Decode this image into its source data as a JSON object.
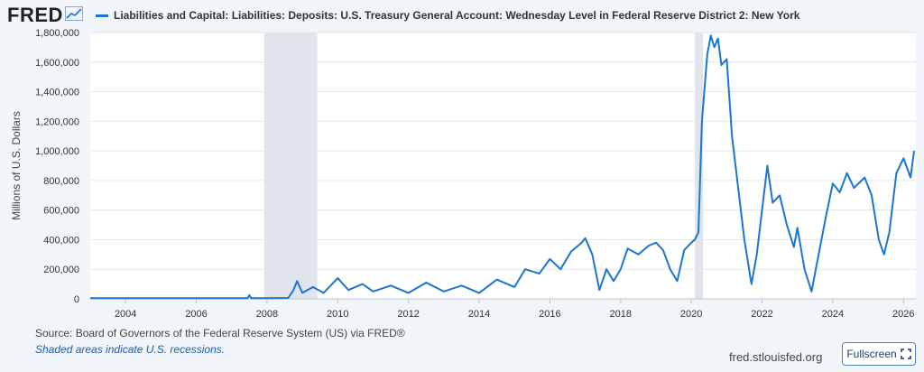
{
  "header": {
    "logo": "FRED",
    "logo_icon": "line-chart-icon",
    "series_title": "Liabilities and Capital: Liabilities: Deposits: U.S. Treasury General Account: Wednesday Level in Federal Reserve District 2: New York",
    "series_color": "#1a76d2"
  },
  "chart_data": {
    "type": "line",
    "ylabel": "Millions of U.S. Dollars",
    "xlabel": "",
    "ylim": [
      0,
      1800000
    ],
    "xlim": [
      2003.0,
      2026.35
    ],
    "y_ticks": [
      0,
      200000,
      400000,
      600000,
      800000,
      1000000,
      1200000,
      1400000,
      1600000,
      1800000
    ],
    "y_tick_labels": [
      "0",
      "200,000",
      "400,000",
      "600,000",
      "800,000",
      "1,000,000",
      "1,200,000",
      "1,400,000",
      "1,600,000",
      "1,800,000"
    ],
    "x_ticks": [
      2004,
      2006,
      2008,
      2010,
      2012,
      2014,
      2016,
      2018,
      2020,
      2022,
      2024,
      2026
    ],
    "x_tick_labels": [
      "2004",
      "2006",
      "2008",
      "2010",
      "2012",
      "2014",
      "2016",
      "2018",
      "2020",
      "2022",
      "2024",
      "2026"
    ],
    "grid": "horizontal",
    "recessions": [
      [
        2007.92,
        2009.42
      ],
      [
        2020.1,
        2020.33
      ]
    ],
    "series": [
      {
        "name": "Liabilities and Capital: Liabilities: Deposits: U.S. Treasury General Account: Wednesday Level in Federal Reserve District 2: New York",
        "color": "#1a76d2",
        "points": [
          [
            2003.0,
            5000
          ],
          [
            2004.0,
            4000
          ],
          [
            2005.0,
            5000
          ],
          [
            2006.0,
            4000
          ],
          [
            2007.0,
            5000
          ],
          [
            2007.45,
            5000
          ],
          [
            2007.5,
            25000
          ],
          [
            2007.55,
            5000
          ],
          [
            2008.0,
            5000
          ],
          [
            2008.6,
            6000
          ],
          [
            2008.75,
            60000
          ],
          [
            2008.85,
            120000
          ],
          [
            2009.0,
            40000
          ],
          [
            2009.3,
            80000
          ],
          [
            2009.6,
            40000
          ],
          [
            2010.0,
            140000
          ],
          [
            2010.3,
            60000
          ],
          [
            2010.7,
            100000
          ],
          [
            2011.0,
            50000
          ],
          [
            2011.5,
            90000
          ],
          [
            2012.0,
            40000
          ],
          [
            2012.5,
            110000
          ],
          [
            2013.0,
            50000
          ],
          [
            2013.5,
            90000
          ],
          [
            2014.0,
            40000
          ],
          [
            2014.5,
            130000
          ],
          [
            2015.0,
            80000
          ],
          [
            2015.3,
            200000
          ],
          [
            2015.7,
            170000
          ],
          [
            2016.0,
            270000
          ],
          [
            2016.3,
            200000
          ],
          [
            2016.6,
            320000
          ],
          [
            2016.9,
            380000
          ],
          [
            2017.0,
            410000
          ],
          [
            2017.2,
            300000
          ],
          [
            2017.4,
            60000
          ],
          [
            2017.6,
            200000
          ],
          [
            2017.8,
            120000
          ],
          [
            2018.0,
            200000
          ],
          [
            2018.2,
            340000
          ],
          [
            2018.5,
            300000
          ],
          [
            2018.8,
            360000
          ],
          [
            2019.0,
            380000
          ],
          [
            2019.2,
            330000
          ],
          [
            2019.4,
            200000
          ],
          [
            2019.6,
            120000
          ],
          [
            2019.8,
            330000
          ],
          [
            2020.0,
            380000
          ],
          [
            2020.1,
            400000
          ],
          [
            2020.2,
            450000
          ],
          [
            2020.3,
            1200000
          ],
          [
            2020.45,
            1650000
          ],
          [
            2020.55,
            1780000
          ],
          [
            2020.65,
            1700000
          ],
          [
            2020.75,
            1760000
          ],
          [
            2020.85,
            1580000
          ],
          [
            2021.0,
            1620000
          ],
          [
            2021.15,
            1100000
          ],
          [
            2021.3,
            800000
          ],
          [
            2021.5,
            400000
          ],
          [
            2021.7,
            100000
          ],
          [
            2021.85,
            300000
          ],
          [
            2022.0,
            600000
          ],
          [
            2022.15,
            900000
          ],
          [
            2022.3,
            650000
          ],
          [
            2022.5,
            700000
          ],
          [
            2022.7,
            500000
          ],
          [
            2022.9,
            350000
          ],
          [
            2023.0,
            480000
          ],
          [
            2023.2,
            200000
          ],
          [
            2023.4,
            50000
          ],
          [
            2023.6,
            300000
          ],
          [
            2023.8,
            550000
          ],
          [
            2024.0,
            780000
          ],
          [
            2024.2,
            720000
          ],
          [
            2024.4,
            850000
          ],
          [
            2024.6,
            750000
          ],
          [
            2024.9,
            820000
          ],
          [
            2025.1,
            700000
          ],
          [
            2025.3,
            400000
          ],
          [
            2025.45,
            300000
          ],
          [
            2025.6,
            450000
          ],
          [
            2025.8,
            850000
          ],
          [
            2026.0,
            950000
          ],
          [
            2026.2,
            820000
          ],
          [
            2026.3,
            1000000
          ]
        ]
      }
    ]
  },
  "footer": {
    "source": "Source: Board of Governors of the Federal Reserve System (US) via FRED®",
    "note": "Shaded areas indicate U.S. recessions.",
    "site": "fred.stlouisfed.org",
    "fullscreen_label": "Fullscreen",
    "fullscreen_icon": "expand-icon"
  }
}
